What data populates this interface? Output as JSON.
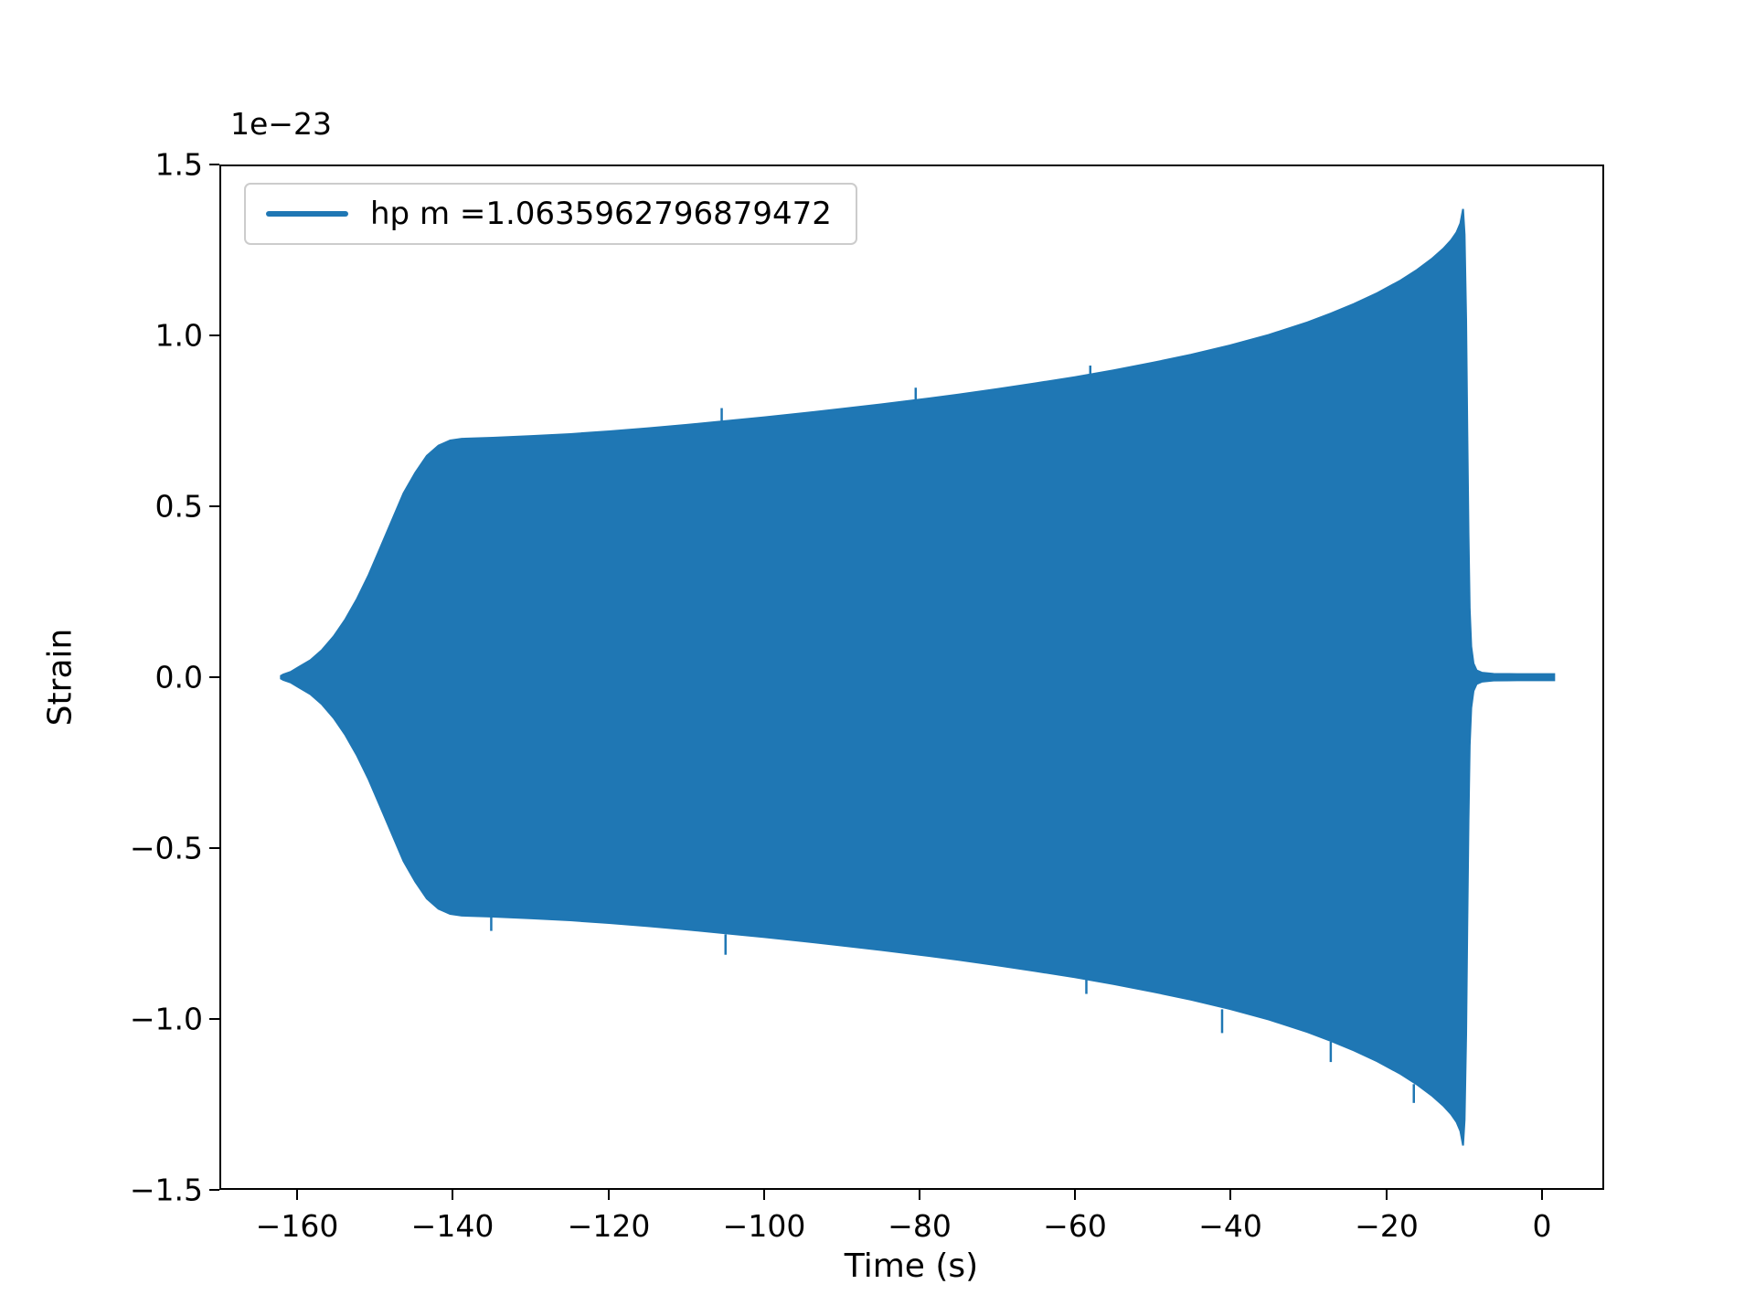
{
  "figure": {
    "background": "#ffffff",
    "line_color": "#1f77b4",
    "spine_color": "#000000",
    "legend_border_color": "#cccccc",
    "text_color": "#000000"
  },
  "chart_data": {
    "type": "area",
    "title": "",
    "xlabel": "Time (s)",
    "ylabel": "Strain",
    "offset_text": "1e−23",
    "grid": false,
    "legend": {
      "label": "hp m =1.0635962796879472",
      "position": "upper left"
    },
    "xlim": [
      -170,
      8
    ],
    "ylim": [
      -1.5,
      1.5
    ],
    "xticks": [
      -160,
      -140,
      -120,
      -100,
      -80,
      -60,
      -40,
      -20,
      0
    ],
    "xtick_labels": [
      "−160",
      "−140",
      "−120",
      "−100",
      "−80",
      "−60",
      "−40",
      "−20",
      "0"
    ],
    "yticks": [
      -1.5,
      -1.0,
      -0.5,
      0.0,
      0.5,
      1.0,
      1.5
    ],
    "ytick_labels": [
      "−1.5",
      "−1.0",
      "−0.5",
      "0.0",
      "0.5",
      "1.0",
      "1.5"
    ],
    "units_note": "envelope amplitude of dense oscillation, symmetric about 0, in units of 1e-23 strain; waveform spans t = -162 s to ~0 s, peak |h| ~ 1.38e-23 at t ~ -10 s, near-zero after merger",
    "envelope": [
      [
        -162.3,
        0.004
      ],
      [
        -162.0,
        0.008
      ],
      [
        -161.0,
        0.016
      ],
      [
        -160.0,
        0.03
      ],
      [
        -158.5,
        0.05
      ],
      [
        -157.0,
        0.08
      ],
      [
        -155.5,
        0.12
      ],
      [
        -154.0,
        0.17
      ],
      [
        -152.5,
        0.23
      ],
      [
        -151.0,
        0.3
      ],
      [
        -149.5,
        0.38
      ],
      [
        -148.0,
        0.46
      ],
      [
        -146.5,
        0.54
      ],
      [
        -145.0,
        0.6
      ],
      [
        -143.5,
        0.65
      ],
      [
        -142.0,
        0.68
      ],
      [
        -140.5,
        0.695
      ],
      [
        -139.0,
        0.7
      ],
      [
        -135.0,
        0.703
      ],
      [
        -130.0,
        0.708
      ],
      [
        -125.0,
        0.714
      ],
      [
        -120.0,
        0.722
      ],
      [
        -115.0,
        0.731
      ],
      [
        -110.0,
        0.741
      ],
      [
        -105.0,
        0.752
      ],
      [
        -100.0,
        0.763
      ],
      [
        -95.0,
        0.775
      ],
      [
        -90.0,
        0.788
      ],
      [
        -85.0,
        0.801
      ],
      [
        -80.0,
        0.815
      ],
      [
        -75.0,
        0.83
      ],
      [
        -70.0,
        0.846
      ],
      [
        -65.0,
        0.863
      ],
      [
        -60.0,
        0.881
      ],
      [
        -55.0,
        0.901
      ],
      [
        -50.0,
        0.923
      ],
      [
        -45.0,
        0.947
      ],
      [
        -40.0,
        0.974
      ],
      [
        -35.0,
        1.005
      ],
      [
        -30.0,
        1.042
      ],
      [
        -27.0,
        1.068
      ],
      [
        -24.0,
        1.096
      ],
      [
        -21.0,
        1.128
      ],
      [
        -18.0,
        1.165
      ],
      [
        -16.0,
        1.194
      ],
      [
        -14.0,
        1.228
      ],
      [
        -12.5,
        1.258
      ],
      [
        -11.5,
        1.283
      ],
      [
        -10.8,
        1.306
      ],
      [
        -10.3,
        1.332
      ],
      [
        -9.95,
        1.375
      ],
      [
        -9.75,
        1.3
      ],
      [
        -9.55,
        1.05
      ],
      [
        -9.4,
        0.72
      ],
      [
        -9.25,
        0.42
      ],
      [
        -9.1,
        0.2
      ],
      [
        -8.9,
        0.09
      ],
      [
        -8.6,
        0.04
      ],
      [
        -8.2,
        0.02
      ],
      [
        -7.5,
        0.013
      ],
      [
        -6.0,
        0.01
      ],
      [
        -3.0,
        0.009
      ],
      [
        0.0,
        0.009
      ],
      [
        1.8,
        0.009
      ]
    ],
    "lower_spikes": [
      [
        -135.2,
        0.7,
        0.745
      ],
      [
        -105.0,
        0.755,
        0.815
      ],
      [
        -58.5,
        0.885,
        0.93
      ],
      [
        -41.0,
        0.975,
        1.045
      ],
      [
        -27.0,
        1.07,
        1.13
      ],
      [
        -16.3,
        1.195,
        1.25
      ]
    ],
    "upper_spikes": [
      [
        -105.5,
        0.748,
        0.79
      ],
      [
        -80.5,
        0.812,
        0.85
      ],
      [
        -58.0,
        0.878,
        0.915
      ]
    ]
  }
}
